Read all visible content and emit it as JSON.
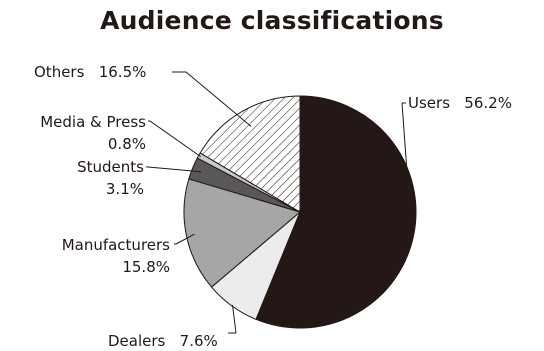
{
  "chart_data": {
    "type": "pie",
    "title": "Audience classifications",
    "slices": [
      {
        "label": "Users",
        "value": 56.2,
        "display": "56.2%",
        "color": "#231815",
        "pattern": "solid"
      },
      {
        "label": "Dealers",
        "value": 7.6,
        "display": "7.6%",
        "color": "#ececec",
        "pattern": "solid"
      },
      {
        "label": "Manufacturers",
        "value": 15.8,
        "display": "15.8%",
        "color": "#a6a6a6",
        "pattern": "solid"
      },
      {
        "label": "Students",
        "value": 3.1,
        "display": "3.1%",
        "color": "#595757",
        "pattern": "solid"
      },
      {
        "label": "Media & Press",
        "value": 0.8,
        "display": "0.8%",
        "color": "#c9caca",
        "pattern": "solid"
      },
      {
        "label": "Others",
        "value": 16.5,
        "display": "16.5%",
        "color": "#ffffff",
        "pattern": "diagonal-hatch"
      }
    ],
    "start": "12 o'clock",
    "direction": "clockwise",
    "legend": "none (callout labels)"
  }
}
